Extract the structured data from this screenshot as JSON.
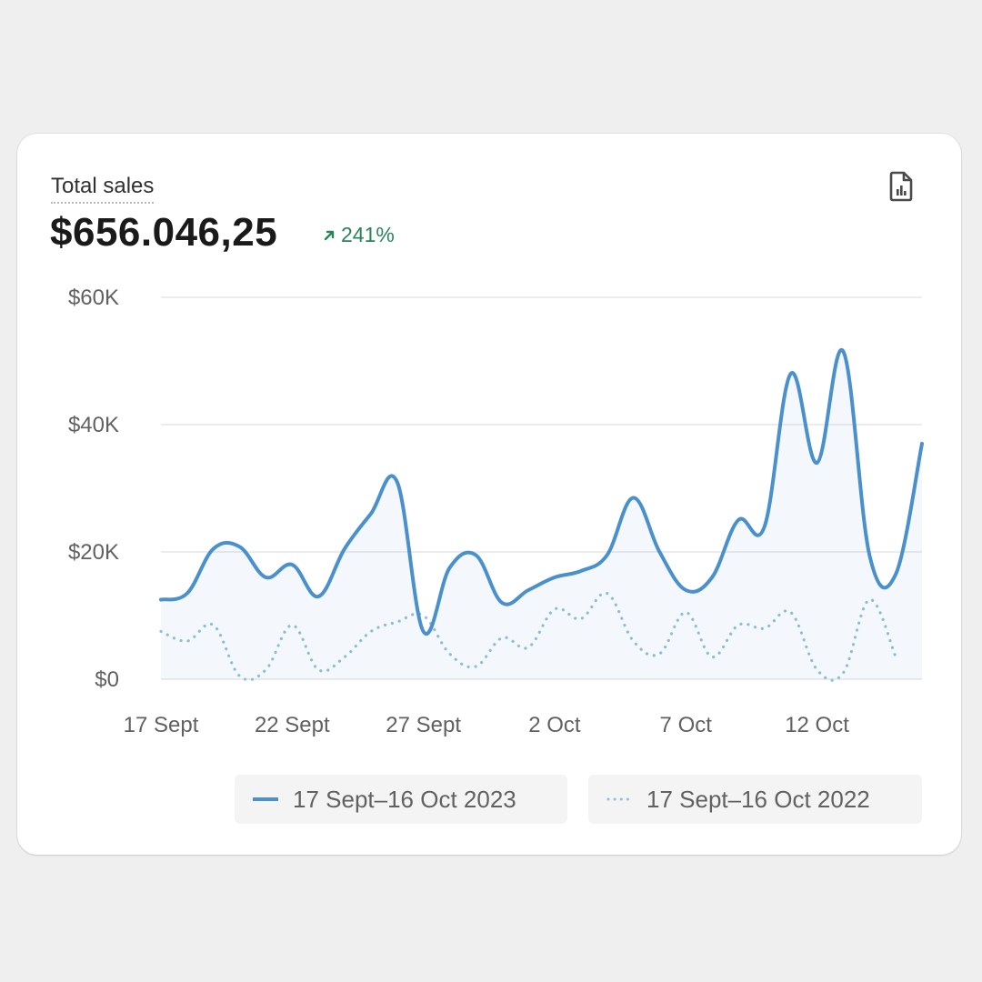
{
  "card": {
    "title": "Total sales",
    "value": "$656.046,25",
    "change": "241%",
    "change_color": "#29845a",
    "export_icon": "report-file-icon"
  },
  "chart_data": {
    "type": "line",
    "x": [
      "17 Sept",
      "18 Sept",
      "19 Sept",
      "20 Sept",
      "21 Sept",
      "22 Sept",
      "23 Sept",
      "24 Sept",
      "25 Sept",
      "26 Sept",
      "27 Sept",
      "28 Sept",
      "29 Sept",
      "30 Sept",
      "1 Oct",
      "2 Oct",
      "3 Oct",
      "4 Oct",
      "5 Oct",
      "6 Oct",
      "7 Oct",
      "8 Oct",
      "9 Oct",
      "10 Oct",
      "11 Oct",
      "12 Oct",
      "13 Oct",
      "14 Oct",
      "15 Oct",
      "16 Oct"
    ],
    "x_tick_labels": [
      "17 Sept",
      "22 Sept",
      "27 Sept",
      "2 Oct",
      "7 Oct",
      "12 Oct"
    ],
    "y_tick_labels": [
      "$0",
      "$20K",
      "$40K",
      "$60K"
    ],
    "ylim": [
      0,
      60000
    ],
    "grid": true,
    "legend_position": "bottom-right",
    "series": [
      {
        "name": "17 Sept–16 Oct 2023",
        "style": "solid",
        "color": "#4a90cc",
        "values": [
          12500,
          13500,
          20500,
          20800,
          16000,
          18000,
          13000,
          20500,
          26000,
          31000,
          7500,
          17500,
          19500,
          12000,
          14000,
          16000,
          17000,
          19500,
          28500,
          20000,
          14000,
          16000,
          25000,
          24000,
          48000,
          34000,
          51500,
          19500,
          16500,
          37000
        ]
      },
      {
        "name": "17 Sept–16 Oct 2022",
        "style": "dotted",
        "color": "#8fc2d6",
        "values": [
          7500,
          6000,
          8500,
          500,
          1500,
          8500,
          1500,
          3500,
          7500,
          9000,
          10000,
          4000,
          2000,
          6500,
          5000,
          11000,
          9500,
          13500,
          6000,
          4000,
          10500,
          3500,
          8500,
          8000,
          10500,
          1500,
          1000,
          12500,
          3500,
          null
        ]
      }
    ]
  }
}
